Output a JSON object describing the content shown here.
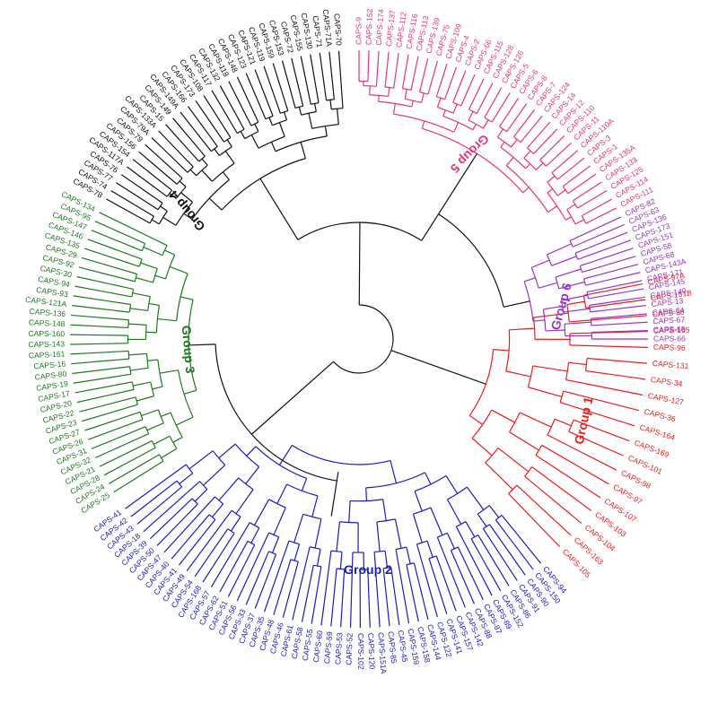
{
  "groups": [
    {
      "name": "Group 1",
      "color": "#ee1c1c",
      "leaves": [
        "CAPS-97A",
        "CAPS-151B",
        "CAPS-38",
        "CAPS-165",
        "CAPS-96",
        "CAPS-131",
        "CAPS-34",
        "CAPS-127",
        "CAPS-36",
        "CAPS-164",
        "CAPS-169",
        "CAPS-101",
        "CAPS-98",
        "CAPS-97",
        "CAPS-107",
        "CAPS-103",
        "CAPS-104",
        "CAPS-163",
        "CAPS-105"
      ]
    },
    {
      "name": "Group 2",
      "color": "#1a1acc",
      "leaves": [
        "CAPS-94",
        "CAPS-150",
        "CAPS-90",
        "CAPS-91",
        "CAPS-86",
        "CAPS-152",
        "CAPS-89",
        "CAPS-87",
        "CAPS-88",
        "CAPS-142",
        "CAPS-157",
        "CAPS-141",
        "CAPS-122",
        "CAPS-144",
        "CAPS-158",
        "CAPS-159",
        "CAPS-45",
        "CAPS-85",
        "CAPS-151A",
        "CAPS-120",
        "CAPS-102",
        "CAPS-52",
        "CAPS-53",
        "CAPS-59",
        "CAPS-60",
        "CAPS-55",
        "CAPS-58",
        "CAPS-61",
        "CAPS-46",
        "CAPS-48",
        "CAPS-35",
        "CAPS-37",
        "CAPS-33",
        "CAPS-56",
        "CAPS-51",
        "CAPS-62",
        "CAPS-57",
        "CAPS-168",
        "CAPS-54",
        "CAPS-49",
        "CAPS-41",
        "CAPS-40",
        "CAPS-47",
        "CAPS-50",
        "CAPS-39",
        "CAPS-18",
        "CAPS-43",
        "CAPS-42",
        "CAPS-41"
      ]
    },
    {
      "name": "Group 3",
      "color": "#1f7a1f",
      "leaves": [
        "CAPS-25",
        "CAPS-24",
        "CAPS-28",
        "CAPS-21",
        "CAPS-32",
        "CAPS-31",
        "CAPS-26",
        "CAPS-27",
        "CAPS-23",
        "CAPS-22",
        "CAPS-20",
        "CAPS-17",
        "CAPS-19",
        "CAPS-80",
        "CAPS-16",
        "CAPS-161",
        "CAPS-143",
        "CAPS-160",
        "CAPS-148",
        "CAPS-136",
        "CAPS-121A",
        "CAPS-93",
        "CAPS-94",
        "CAPS-30",
        "CAPS-92",
        "CAPS-29",
        "CAPS-135",
        "CAPS-146",
        "CAPS-147",
        "CAPS-95",
        "CAPS-134"
      ]
    },
    {
      "name": "Group 4",
      "color": "#111111",
      "leaves": [
        "CAPS-78",
        "CAPS-74",
        "CAPS-77",
        "CAPS-76",
        "CAPS-117A",
        "CAPS-154",
        "CAPS-156",
        "CAPS-79",
        "CAPS-79A",
        "CAPS-133A",
        "CAPS-15",
        "CAPS-149",
        "CAPS-149A",
        "CAPS-166",
        "CAPS-173",
        "CAPS-108",
        "CAPS-117",
        "CAPS-132",
        "CAPS-118",
        "CAPS-148",
        "CAPS-123",
        "CAPS-121",
        "CAPS-119",
        "CAPS-159",
        "CAPS-153",
        "CAPS-72",
        "CAPS-155",
        "CAPS-130",
        "CAPS-71",
        "CAPS-71A",
        "CAPS-70"
      ]
    },
    {
      "name": "Group 5",
      "color": "#e8337f",
      "leaves": [
        "CAPS-9",
        "CAPS-152",
        "CAPS-174",
        "CAPS-137",
        "CAPS-112",
        "CAPS-116",
        "CAPS-113",
        "CAPS-139",
        "CAPS-75",
        "CAPS-109",
        "CAPS-4",
        "CAPS-2",
        "CAPS-66",
        "CAPS-115",
        "CAPS-128",
        "CAPS-126",
        "CAPS-5",
        "CAPS-6",
        "CAPS-8",
        "CAPS-7",
        "CAPS-124",
        "CAPS-14",
        "CAPS-12",
        "CAPS-110",
        "CAPS-11",
        "CAPS-110A",
        "CAPS-3",
        "CAPS-1",
        "CAPS-135A",
        "CAPS-133",
        "CAPS-125",
        "CAPS-114",
        "CAPS-111"
      ]
    },
    {
      "name": "Group 6",
      "color": "#9933cc",
      "leaves": [
        "CAPS-82",
        "CAPS-63",
        "CAPS-136",
        "CAPS-173",
        "CAPS-151",
        "CAPS-58",
        "CAPS-68",
        "CAPS-143A",
        "CAPS-171",
        "CAPS-145",
        "CAPS-140",
        "CAPS-13",
        "CAPS-64",
        "CAPS-67",
        "CAPS-65",
        "CAPS-66"
      ]
    }
  ],
  "root_color": "#111111"
}
